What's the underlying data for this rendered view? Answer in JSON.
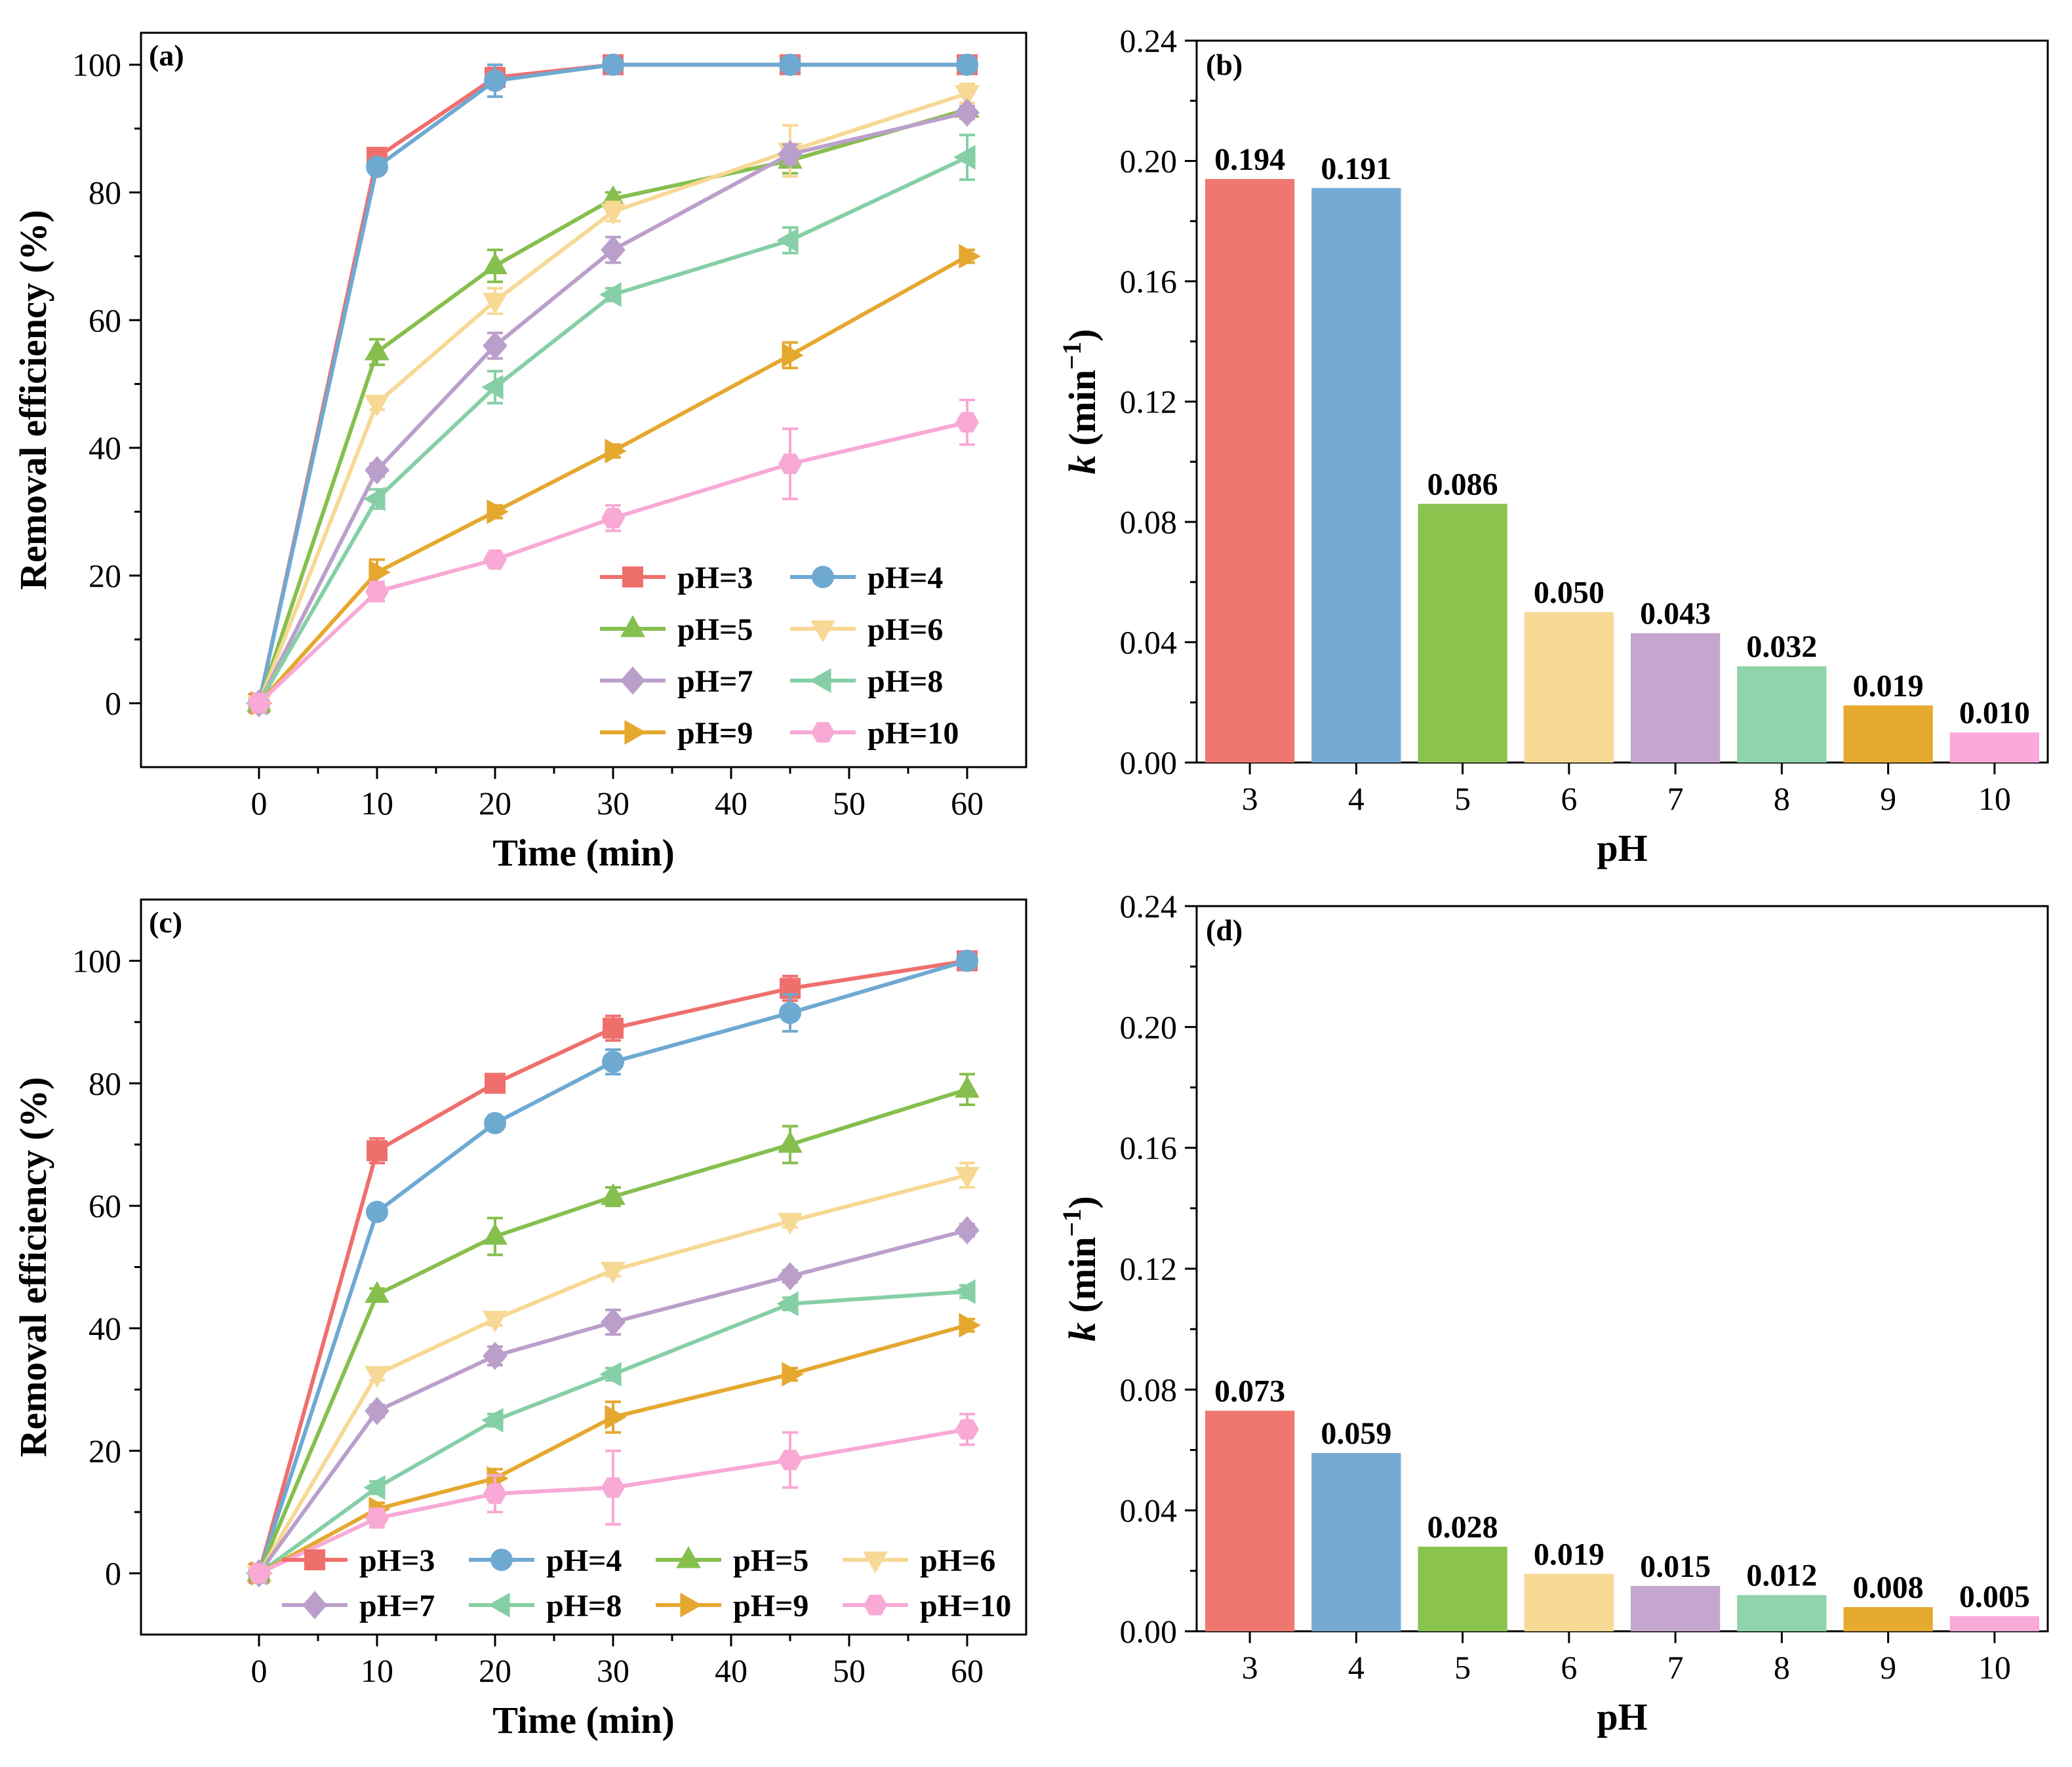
{
  "figure": {
    "panels": [
      "a",
      "b",
      "c",
      "d"
    ]
  },
  "chart_data": [
    {
      "id": "a",
      "type": "line",
      "panel_label": "(a)",
      "xlabel": "Time (min)",
      "ylabel": "Removal efficiency (%)",
      "xlim": [
        -10,
        65
      ],
      "ylim": [
        -10,
        105
      ],
      "xticks": [
        0,
        10,
        20,
        30,
        40,
        50,
        60
      ],
      "yticks": [
        0,
        20,
        40,
        60,
        80,
        100
      ],
      "x": [
        0,
        10,
        20,
        30,
        45,
        60
      ],
      "legend_position": "bottom-right, two columns",
      "series": [
        {
          "name": "pH=3",
          "color": "#ef6f6c",
          "marker": "square",
          "values": [
            0,
            85.5,
            98,
            100,
            100,
            100
          ],
          "err": [
            0,
            1,
            1.5,
            0,
            0,
            0
          ]
        },
        {
          "name": "pH=4",
          "color": "#6ea9d2",
          "marker": "circle",
          "values": [
            0,
            84,
            97.5,
            100,
            100,
            100
          ],
          "err": [
            0,
            1,
            2.5,
            0,
            0,
            0
          ]
        },
        {
          "name": "pH=5",
          "color": "#86bf4e",
          "marker": "triangle-up",
          "values": [
            0,
            55,
            68.5,
            79,
            85,
            93
          ],
          "err": [
            0,
            2,
            2.5,
            1,
            2,
            1
          ]
        },
        {
          "name": "pH=6",
          "color": "#f7d894",
          "marker": "triangle-down",
          "values": [
            0,
            47,
            63,
            77,
            86.5,
            95.5
          ],
          "err": [
            0,
            1,
            2,
            1.5,
            4,
            1.5
          ]
        },
        {
          "name": "pH=7",
          "color": "#bb9fcb",
          "marker": "diamond",
          "values": [
            0,
            36.5,
            56,
            71,
            86,
            92.5
          ],
          "err": [
            0,
            1,
            2,
            2,
            1.5,
            1
          ]
        },
        {
          "name": "pH=8",
          "color": "#86cfa6",
          "marker": "triangle-left",
          "values": [
            0,
            32,
            49.5,
            64,
            72.5,
            85.5
          ],
          "err": [
            0,
            1.5,
            2.5,
            1,
            2,
            3.5
          ]
        },
        {
          "name": "pH=9",
          "color": "#e5a82f",
          "marker": "triangle-right",
          "values": [
            0,
            20.5,
            30,
            39.5,
            54.5,
            70
          ],
          "err": [
            0,
            2,
            1,
            1,
            2,
            1
          ]
        },
        {
          "name": "pH=10",
          "color": "#f8a9d5",
          "marker": "hexagon",
          "values": [
            0,
            17.5,
            22.5,
            29,
            37.5,
            44
          ],
          "err": [
            0,
            1.5,
            1,
            2,
            5.5,
            3.5
          ]
        }
      ]
    },
    {
      "id": "b",
      "type": "bar",
      "panel_label": "(b)",
      "xlabel": "pH",
      "ylabel": "k (min−1)",
      "ylabel_parts": {
        "var": "k",
        "open": " (min",
        "exp": "−1",
        "close": ")"
      },
      "ylim": [
        0,
        0.24
      ],
      "yticks": [
        "0.00",
        "0.04",
        "0.08",
        "0.12",
        "0.16",
        "0.20",
        "0.24"
      ],
      "categories": [
        "3",
        "4",
        "5",
        "6",
        "7",
        "8",
        "9",
        "10"
      ],
      "values": [
        0.194,
        0.191,
        0.086,
        0.05,
        0.043,
        0.032,
        0.019,
        0.01
      ],
      "labels": [
        "0.194",
        "0.191",
        "0.086",
        "0.050",
        "0.043",
        "0.032",
        "0.019",
        "0.010"
      ],
      "colors": [
        "#ef7770",
        "#74aad3",
        "#8bc34f",
        "#f7d996",
        "#c4a6cf",
        "#8fd4aa",
        "#e6aa2f",
        "#f9aad8"
      ]
    },
    {
      "id": "c",
      "type": "line",
      "panel_label": "(c)",
      "xlabel": "Time (min)",
      "ylabel": "Removal efficiency (%)",
      "xlim": [
        -10,
        65
      ],
      "ylim": [
        -10,
        110
      ],
      "xticks": [
        0,
        10,
        20,
        30,
        40,
        50,
        60
      ],
      "yticks": [
        0,
        20,
        40,
        60,
        80,
        100
      ],
      "x": [
        0,
        10,
        20,
        30,
        45,
        60
      ],
      "legend_position": "bottom, four columns",
      "series": [
        {
          "name": "pH=3",
          "color": "#ef6f6c",
          "marker": "square",
          "values": [
            0,
            69,
            80,
            89,
            95.5,
            100
          ],
          "err": [
            0,
            2,
            1,
            2,
            2,
            0
          ]
        },
        {
          "name": "pH=4",
          "color": "#6ea9d2",
          "marker": "circle",
          "values": [
            0,
            59,
            73.5,
            83.5,
            91.5,
            100
          ],
          "err": [
            0,
            1,
            1,
            2,
            3,
            0
          ]
        },
        {
          "name": "pH=5",
          "color": "#86bf4e",
          "marker": "triangle-up",
          "values": [
            0,
            45.5,
            55,
            61.5,
            70,
            79
          ],
          "err": [
            0,
            1,
            3,
            1.5,
            3,
            2.5
          ]
        },
        {
          "name": "pH=6",
          "color": "#f7d894",
          "marker": "triangle-down",
          "values": [
            0,
            32.5,
            41.5,
            49.5,
            57.5,
            65
          ],
          "err": [
            0,
            1,
            1,
            1,
            1,
            2
          ]
        },
        {
          "name": "pH=7",
          "color": "#bb9fcb",
          "marker": "diamond",
          "values": [
            0,
            26.5,
            35.5,
            41,
            48.5,
            56
          ],
          "err": [
            0,
            1,
            1.5,
            2,
            1,
            1
          ]
        },
        {
          "name": "pH=8",
          "color": "#86cfa6",
          "marker": "triangle-left",
          "values": [
            0,
            14,
            25,
            32.5,
            44,
            46
          ],
          "err": [
            0,
            1,
            1,
            1,
            1,
            1
          ]
        },
        {
          "name": "pH=9",
          "color": "#e5a82f",
          "marker": "triangle-right",
          "values": [
            0,
            10.5,
            15.5,
            25.5,
            32.5,
            40.5
          ],
          "err": [
            0,
            1,
            1.5,
            2.5,
            1,
            1
          ]
        },
        {
          "name": "pH=10",
          "color": "#f8a9d5",
          "marker": "hexagon",
          "values": [
            0,
            9,
            13,
            14,
            18.5,
            23.5
          ],
          "err": [
            0,
            1.5,
            3,
            6,
            4.5,
            2.5
          ]
        }
      ]
    },
    {
      "id": "d",
      "type": "bar",
      "panel_label": "(d)",
      "xlabel": "pH",
      "ylabel": "k (min−1)",
      "ylabel_parts": {
        "var": "k",
        "open": " (min",
        "exp": "−1",
        "close": ")"
      },
      "ylim": [
        0,
        0.24
      ],
      "yticks": [
        "0.00",
        "0.04",
        "0.08",
        "0.12",
        "0.16",
        "0.20",
        "0.24"
      ],
      "categories": [
        "3",
        "4",
        "5",
        "6",
        "7",
        "8",
        "9",
        "10"
      ],
      "values": [
        0.073,
        0.059,
        0.028,
        0.019,
        0.015,
        0.012,
        0.008,
        0.005
      ],
      "labels": [
        "0.073",
        "0.059",
        "0.028",
        "0.019",
        "0.015",
        "0.012",
        "0.008",
        "0.005"
      ],
      "colors": [
        "#ef7770",
        "#74aad3",
        "#8bc34f",
        "#f7d996",
        "#c4a6cf",
        "#8fd4aa",
        "#e6aa2f",
        "#f9aad8"
      ]
    }
  ]
}
